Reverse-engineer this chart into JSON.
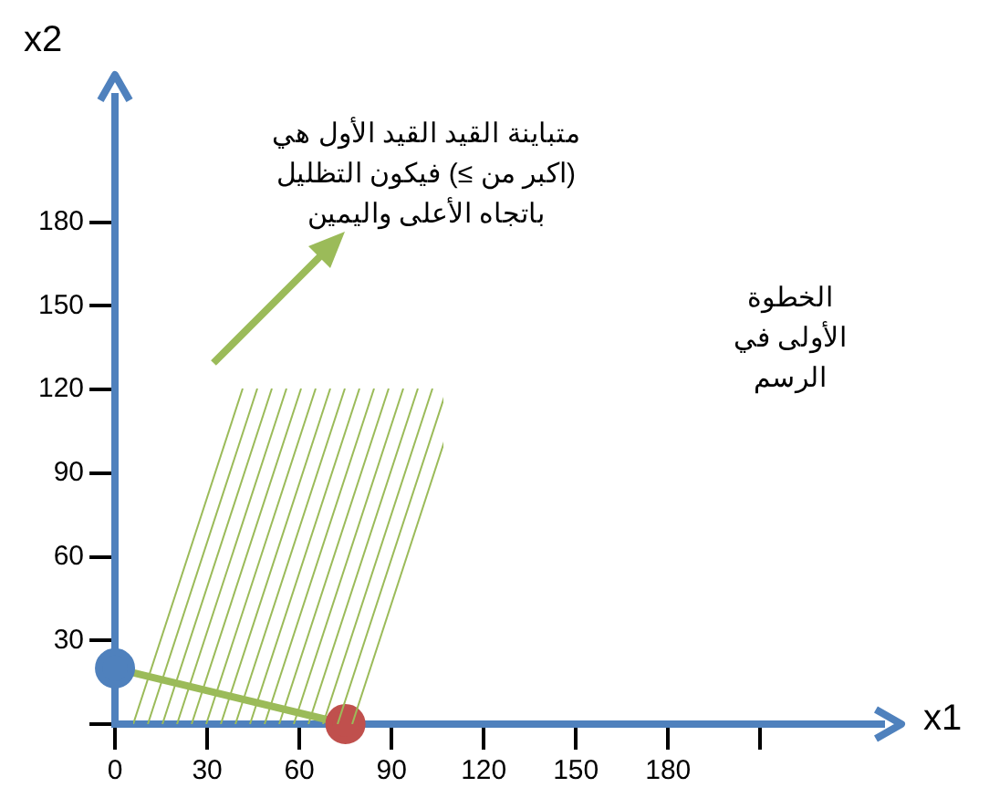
{
  "chart_data": {
    "type": "line",
    "xlabel": "x1",
    "ylabel": "x2",
    "x": [
      0,
      75
    ],
    "series": [
      {
        "color": "#9bbb59",
        "colors": [
          "#4f81bd",
          "#c0504d"
        ],
        "values": [
          20,
          0
        ]
      }
    ],
    "xlim": [
      0,
      250
    ],
    "ylim": [
      0,
      225
    ],
    "xticks": [
      0,
      30,
      60,
      90,
      120,
      150,
      180,
      {
        "value": 210,
        "label": null
      }
    ],
    "yticks": [
      {
        "value": 0,
        "label": null
      },
      30,
      60,
      90,
      120,
      150,
      180
    ],
    "grid": false,
    "legend": false,
    "marker": "circle",
    "line_style": "solid",
    "annotations": [
      "متباينة القيد القيد الأول هي (اكبر من ≥) فيكون التظليل باتجاه الأعلى واليمين",
      "الخطوة الأولى في الرسم"
    ]
  }
}
